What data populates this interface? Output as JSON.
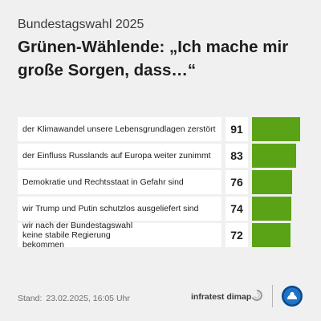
{
  "kicker": "Bundestagswahl 2025",
  "title": "Grünen-Wählende: „Ich mache mir große Sorgen, dass…“",
  "chart_data": {
    "type": "bar",
    "orientation": "horizontal",
    "title": "Grünen-Wählende: „Ich mache mir große Sorgen, dass…“",
    "categories": [
      "der Klimawandel unsere Lebensgrundlagen zerstört",
      "der Einfluss Russlands auf Europa weiter zunimmt",
      "Demokratie und Rechtsstaat in Gefahr sind",
      "wir Trump und Putin schutzlos ausgeliefert sind",
      "wir nach der Bundestagswahl keine stabile Regierung bekommen"
    ],
    "values": [
      91,
      83,
      76,
      74,
      72
    ],
    "xlim": [
      0,
      100
    ],
    "bar_color": "#5aa316",
    "grid": false
  },
  "footer": {
    "stand_label": "Stand:",
    "stand_value": "23.02.2025, 16:05 Uhr",
    "source": "infratest dimap",
    "source_logo_icon": "infratest-dimap-logo-icon",
    "broadcaster_logo_icon": "ard-logo-icon"
  }
}
